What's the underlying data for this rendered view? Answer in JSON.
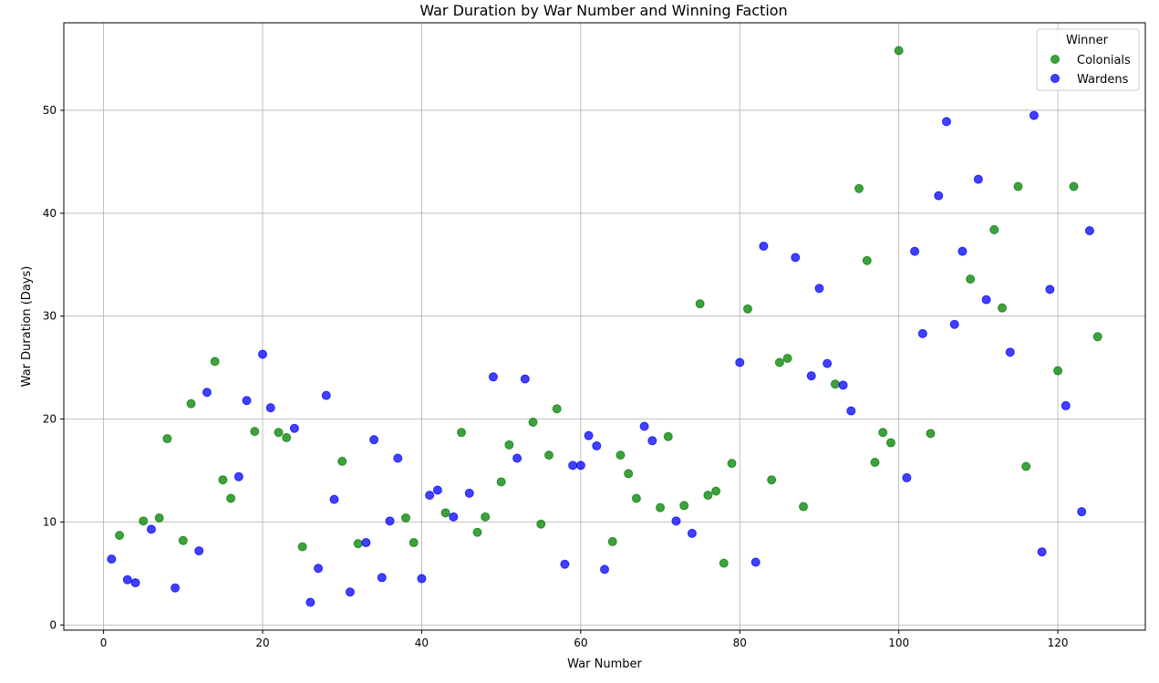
{
  "chart_data": {
    "type": "scatter",
    "title": "War Duration by War Number and Winning Faction",
    "xlabel": "War Number",
    "ylabel": "War Duration (Days)",
    "xlim": [
      -5,
      131
    ],
    "ylim": [
      -0.5,
      58.5
    ],
    "xticks": [
      0,
      20,
      40,
      60,
      80,
      100,
      120
    ],
    "yticks": [
      0,
      10,
      20,
      30,
      40,
      50
    ],
    "grid": true,
    "legend": {
      "title": "Winner",
      "placement": "top-right"
    },
    "series": [
      {
        "name": "Colonials",
        "color": "#008000",
        "points": [
          [
            2,
            8.7
          ],
          [
            5,
            10.1
          ],
          [
            7,
            10.4
          ],
          [
            8,
            18.1
          ],
          [
            10,
            8.2
          ],
          [
            11,
            21.5
          ],
          [
            14,
            25.6
          ],
          [
            15,
            14.1
          ],
          [
            16,
            12.3
          ],
          [
            19,
            18.8
          ],
          [
            22,
            18.7
          ],
          [
            23,
            18.2
          ],
          [
            25,
            7.6
          ],
          [
            30,
            15.9
          ],
          [
            32,
            7.9
          ],
          [
            38,
            10.4
          ],
          [
            39,
            8.0
          ],
          [
            43,
            10.9
          ],
          [
            45,
            18.7
          ],
          [
            47,
            9.0
          ],
          [
            48,
            10.5
          ],
          [
            50,
            13.9
          ],
          [
            51,
            17.5
          ],
          [
            54,
            19.7
          ],
          [
            55,
            9.8
          ],
          [
            56,
            16.5
          ],
          [
            57,
            21.0
          ],
          [
            64,
            8.1
          ],
          [
            65,
            16.5
          ],
          [
            66,
            14.7
          ],
          [
            67,
            12.3
          ],
          [
            70,
            11.4
          ],
          [
            71,
            18.3
          ],
          [
            73,
            11.6
          ],
          [
            75,
            31.2
          ],
          [
            76,
            12.6
          ],
          [
            77,
            13.0
          ],
          [
            78,
            6.0
          ],
          [
            79,
            15.7
          ],
          [
            81,
            30.7
          ],
          [
            84,
            14.1
          ],
          [
            85,
            25.5
          ],
          [
            86,
            25.9
          ],
          [
            88,
            11.5
          ],
          [
            92,
            23.4
          ],
          [
            95,
            42.4
          ],
          [
            96,
            35.4
          ],
          [
            97,
            15.8
          ],
          [
            98,
            18.7
          ],
          [
            99,
            17.7
          ],
          [
            100,
            55.8
          ],
          [
            104,
            18.6
          ],
          [
            109,
            33.6
          ],
          [
            112,
            38.4
          ],
          [
            113,
            30.8
          ],
          [
            115,
            42.6
          ],
          [
            116,
            15.4
          ],
          [
            120,
            24.7
          ],
          [
            122,
            42.6
          ],
          [
            125,
            28.0
          ]
        ]
      },
      {
        "name": "Wardens",
        "color": "#0000ff",
        "points": [
          [
            1,
            6.4
          ],
          [
            3,
            4.4
          ],
          [
            4,
            4.1
          ],
          [
            6,
            9.3
          ],
          [
            9,
            3.6
          ],
          [
            12,
            7.2
          ],
          [
            13,
            22.6
          ],
          [
            17,
            14.4
          ],
          [
            18,
            21.8
          ],
          [
            20,
            26.3
          ],
          [
            21,
            21.1
          ],
          [
            24,
            19.1
          ],
          [
            26,
            2.2
          ],
          [
            27,
            5.5
          ],
          [
            28,
            22.3
          ],
          [
            29,
            12.2
          ],
          [
            31,
            3.2
          ],
          [
            33,
            8.0
          ],
          [
            34,
            18.0
          ],
          [
            35,
            4.6
          ],
          [
            36,
            10.1
          ],
          [
            37,
            16.2
          ],
          [
            40,
            4.5
          ],
          [
            41,
            12.6
          ],
          [
            42,
            13.1
          ],
          [
            44,
            10.5
          ],
          [
            46,
            12.8
          ],
          [
            49,
            24.1
          ],
          [
            52,
            16.2
          ],
          [
            53,
            23.9
          ],
          [
            58,
            5.9
          ],
          [
            59,
            15.5
          ],
          [
            60,
            15.5
          ],
          [
            61,
            18.4
          ],
          [
            62,
            17.4
          ],
          [
            63,
            5.4
          ],
          [
            68,
            19.3
          ],
          [
            69,
            17.9
          ],
          [
            72,
            10.1
          ],
          [
            74,
            8.9
          ],
          [
            80,
            25.5
          ],
          [
            82,
            6.1
          ],
          [
            83,
            36.8
          ],
          [
            87,
            35.7
          ],
          [
            89,
            24.2
          ],
          [
            90,
            32.7
          ],
          [
            91,
            25.4
          ],
          [
            93,
            23.3
          ],
          [
            94,
            20.8
          ],
          [
            101,
            14.3
          ],
          [
            102,
            36.3
          ],
          [
            103,
            28.3
          ],
          [
            105,
            41.7
          ],
          [
            106,
            48.9
          ],
          [
            107,
            29.2
          ],
          [
            108,
            36.3
          ],
          [
            110,
            43.3
          ],
          [
            111,
            31.6
          ],
          [
            114,
            26.5
          ],
          [
            117,
            49.5
          ],
          [
            118,
            7.1
          ],
          [
            119,
            32.6
          ],
          [
            121,
            21.3
          ],
          [
            123,
            11.0
          ],
          [
            124,
            38.3
          ]
        ]
      }
    ]
  }
}
